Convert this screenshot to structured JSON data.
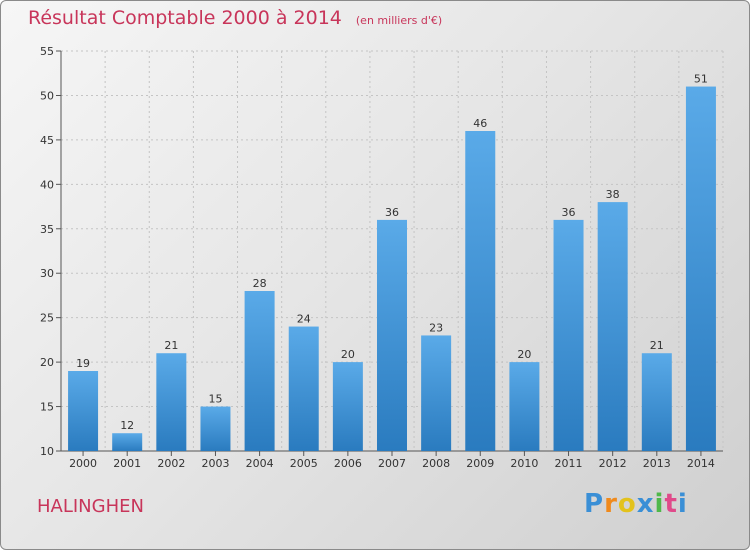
{
  "title": "Résultat Comptable 2000 à 2014",
  "subtitle": "(en milliers d'€)",
  "commune": "HALINGHEN",
  "logo": {
    "text": "Proxiti",
    "letters": [
      "P",
      "r",
      "o",
      "x",
      "i",
      "t",
      "i"
    ],
    "colors": [
      "#3a8fd6",
      "#f08a1c",
      "#e3c21c",
      "#3a8fd6",
      "#4fb84a",
      "#e04a8a",
      "#3a8fd6"
    ]
  },
  "colors": {
    "bar": "#4a9ee0",
    "bar_dark": "#2a7bbf",
    "title": "#c8355a"
  },
  "chart_data": {
    "type": "bar",
    "categories": [
      "2000",
      "2001",
      "2002",
      "2003",
      "2004",
      "2005",
      "2006",
      "2007",
      "2008",
      "2009",
      "2010",
      "2011",
      "2012",
      "2013",
      "2014"
    ],
    "values": [
      19,
      12,
      21,
      15,
      28,
      24,
      20,
      36,
      23,
      46,
      20,
      36,
      38,
      21,
      51
    ],
    "ylim": [
      10,
      55
    ],
    "yticks": [
      10,
      15,
      20,
      25,
      30,
      35,
      40,
      45,
      50,
      55
    ],
    "title": "Résultat Comptable 2000 à 2014",
    "xlabel": "",
    "ylabel": "",
    "grid": true,
    "data_labels": true
  }
}
